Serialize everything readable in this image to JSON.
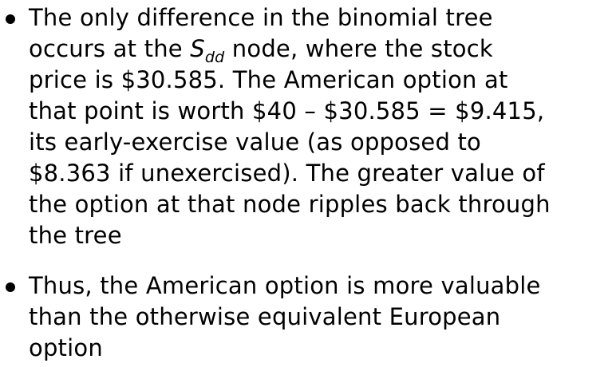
{
  "slide": {
    "bullets": [
      {
        "lines": {
          "l1": "The only difference in the binomial tree",
          "l2_pre": "occurs at the ",
          "symbol_base": "S",
          "symbol_sub": "dd",
          "l2_post": " node, where the stock",
          "l3": "price is $30.585. The American option at",
          "l4": "that point is worth $40 – $30.585 = $9.415,",
          "l5": "its early-exercise value (as opposed to",
          "l6": "$8.363 if unexercised). The greater value of",
          "l7": "the option at that node ripples back through",
          "l8": "the tree"
        }
      },
      {
        "lines": {
          "l1": "Thus, the American option is more valuable",
          "l2": "than the otherwise equivalent European",
          "l3": "option"
        }
      }
    ]
  }
}
